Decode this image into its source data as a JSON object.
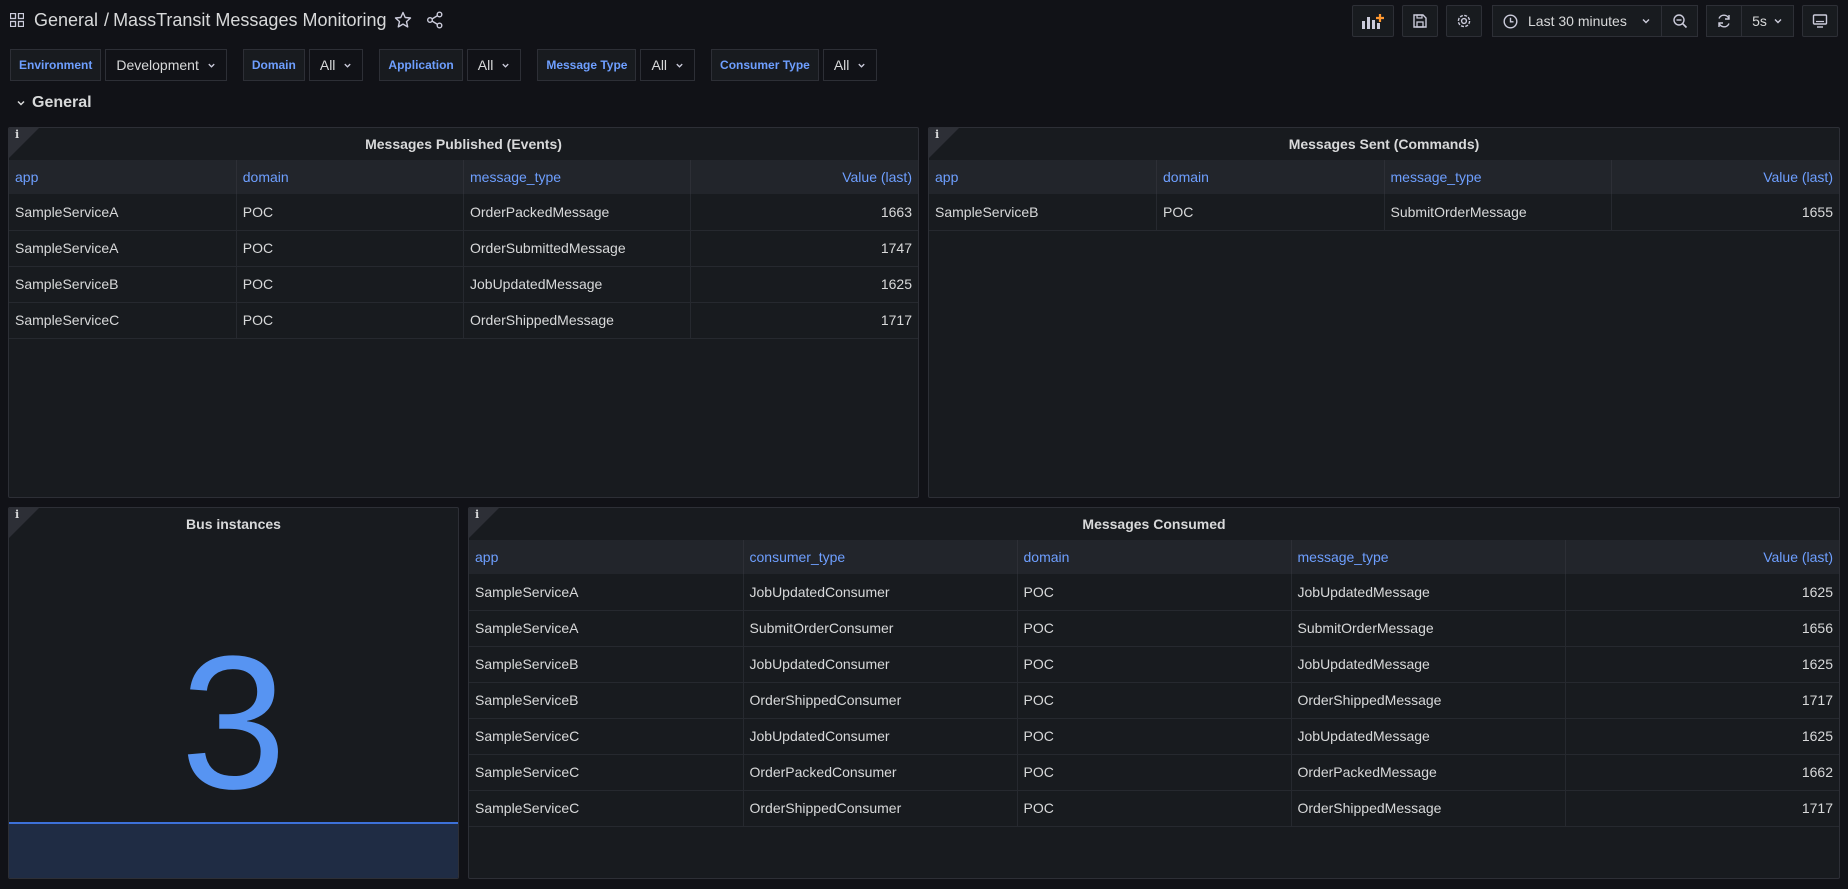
{
  "header": {
    "folder": "General",
    "separator": "/",
    "title": "MassTransit Messages Monitoring"
  },
  "toolbar": {
    "time_range": "Last 30 minutes",
    "refresh_interval": "5s"
  },
  "variables": [
    {
      "label": "Environment",
      "value": "Development"
    },
    {
      "label": "Domain",
      "value": "All"
    },
    {
      "label": "Application",
      "value": "All"
    },
    {
      "label": "Message Type",
      "value": "All"
    },
    {
      "label": "Consumer Type",
      "value": "All"
    }
  ],
  "row": {
    "title": "General"
  },
  "panels": {
    "published": {
      "title": "Messages Published (Events)",
      "info": "i",
      "columns": [
        "app",
        "domain",
        "message_type",
        "Value (last)"
      ],
      "rows": [
        [
          "SampleServiceA",
          "POC",
          "OrderPackedMessage",
          "1663"
        ],
        [
          "SampleServiceA",
          "POC",
          "OrderSubmittedMessage",
          "1747"
        ],
        [
          "SampleServiceB",
          "POC",
          "JobUpdatedMessage",
          "1625"
        ],
        [
          "SampleServiceC",
          "POC",
          "OrderShippedMessage",
          "1717"
        ]
      ]
    },
    "sent": {
      "title": "Messages Sent (Commands)",
      "info": "i",
      "columns": [
        "app",
        "domain",
        "message_type",
        "Value (last)"
      ],
      "rows": [
        [
          "SampleServiceB",
          "POC",
          "SubmitOrderMessage",
          "1655"
        ]
      ]
    },
    "bus": {
      "title": "Bus instances",
      "info": "i",
      "value": "3"
    },
    "consumed": {
      "title": "Messages Consumed",
      "info": "i",
      "columns": [
        "app",
        "consumer_type",
        "domain",
        "message_type",
        "Value (last)"
      ],
      "rows": [
        [
          "SampleServiceA",
          "JobUpdatedConsumer",
          "POC",
          "JobUpdatedMessage",
          "1625"
        ],
        [
          "SampleServiceA",
          "SubmitOrderConsumer",
          "POC",
          "SubmitOrderMessage",
          "1656"
        ],
        [
          "SampleServiceB",
          "JobUpdatedConsumer",
          "POC",
          "JobUpdatedMessage",
          "1625"
        ],
        [
          "SampleServiceB",
          "OrderShippedConsumer",
          "POC",
          "OrderShippedMessage",
          "1717"
        ],
        [
          "SampleServiceC",
          "JobUpdatedConsumer",
          "POC",
          "JobUpdatedMessage",
          "1625"
        ],
        [
          "SampleServiceC",
          "OrderPackedConsumer",
          "POC",
          "OrderPackedMessage",
          "1662"
        ],
        [
          "SampleServiceC",
          "OrderShippedConsumer",
          "POC",
          "OrderShippedMessage",
          "1717"
        ]
      ]
    }
  },
  "icons": {
    "apps": "grid-icon",
    "star": "star-icon",
    "share": "share-icon",
    "add_panel": "add-panel-icon",
    "save": "save-icon",
    "settings": "gear-icon",
    "clock": "clock-icon",
    "zoom_out": "zoom-out-icon",
    "refresh": "refresh-icon",
    "tv": "tv-mode-icon"
  },
  "colors": {
    "background": "#111217",
    "panel": "#181b1f",
    "accent": "#6e9fff",
    "stat": "#5794f2"
  }
}
